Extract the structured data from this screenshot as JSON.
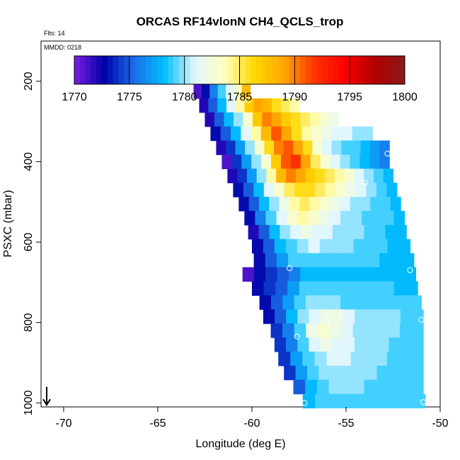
{
  "chart_data": {
    "type": "heatmap",
    "title": "ORCAS RF14vlonN CH4_QCLS_trop",
    "annotations": [
      "Flts: 14",
      "MMDD: 0218"
    ],
    "xlabel": "Longitude (deg E)",
    "ylabel": "PSXC (mbar)",
    "xlim": [
      -71.2,
      -50
    ],
    "ylim": [
      1010,
      100
    ],
    "x_ticks": [
      -70,
      -65,
      -60,
      -55,
      -50
    ],
    "x_tick_labels": [
      "-70",
      "-65",
      "-60",
      "-55",
      "-50"
    ],
    "y_ticks": [
      200,
      400,
      600,
      800,
      1000
    ],
    "y_tick_labels": [
      "200",
      "400",
      "600",
      "800",
      "1000"
    ],
    "colorbar": {
      "min": 1770,
      "max": 1800,
      "ticks": [
        1770,
        1775,
        1780,
        1785,
        1790,
        1795,
        1800
      ],
      "tick_labels": [
        "1770",
        "1775",
        "1780",
        "1785",
        "1790",
        "1795",
        "1800"
      ],
      "colors": [
        "#7b1fe0",
        "#0000a8",
        "#1a6fe8",
        "#00bfff",
        "#e0f6ff",
        "#ffffc0",
        "#ffd700",
        "#ffa500",
        "#ff3300",
        "#ff0000",
        "#b00000",
        "#8b1a1a"
      ]
    },
    "pressure_levels_mbar": [
      {
        "p": 225,
        "x_start": -63.1,
        "x_end": -60.1,
        "values": [
          1771,
          1773,
          1776,
          1779,
          1781,
          1783,
          1788
        ]
      },
      {
        "p": 260,
        "x_start": -62.8,
        "x_end": -57.5,
        "values": [
          1772,
          1775,
          1778,
          1781,
          1784,
          1787,
          1789,
          1788,
          1786,
          1785,
          1784
        ]
      },
      {
        "p": 295,
        "x_start": -62.5,
        "x_end": -55.4,
        "values": [
          1772,
          1775,
          1778,
          1780,
          1783,
          1787,
          1790,
          1789,
          1787,
          1786,
          1785,
          1784,
          1783,
          1782
        ]
      },
      {
        "p": 330,
        "x_start": -62.2,
        "x_end": -53.6,
        "values": [
          1773,
          1775,
          1778,
          1781,
          1784,
          1788,
          1791,
          1789,
          1786,
          1784,
          1783,
          1782,
          1781,
          1781,
          1780,
          1780
        ]
      },
      {
        "p": 365,
        "x_start": -61.9,
        "x_end": -52.7,
        "values": [
          1772,
          1774,
          1777,
          1780,
          1783,
          1786,
          1790,
          1791,
          1789,
          1786,
          1783,
          1781,
          1780,
          1779,
          1779,
          1778,
          1777,
          1776
        ]
      },
      {
        "p": 400,
        "x_start": -61.6,
        "x_end": -52.7,
        "values": [
          1771,
          1774,
          1777,
          1780,
          1783,
          1787,
          1791,
          1792,
          1789,
          1785,
          1783,
          1781,
          1780,
          1779,
          1778,
          1777,
          1776
        ]
      },
      {
        "p": 435,
        "x_start": -61.3,
        "x_end": -52.5,
        "values": [
          1772,
          1774,
          1777,
          1780,
          1784,
          1788,
          1790,
          1789,
          1787,
          1786,
          1785,
          1784,
          1783,
          1781,
          1780,
          1779,
          1778
        ]
      },
      {
        "p": 470,
        "x_start": -61.0,
        "x_end": -52.3,
        "values": [
          1773,
          1775,
          1778,
          1781,
          1783,
          1785,
          1786,
          1786,
          1785,
          1784,
          1783,
          1782,
          1781,
          1780,
          1779,
          1778
        ]
      },
      {
        "p": 505,
        "x_start": -60.7,
        "x_end": -52.1,
        "values": [
          1773,
          1775,
          1778,
          1780,
          1782,
          1784,
          1785,
          1784,
          1783,
          1782,
          1781,
          1780,
          1780,
          1779,
          1779,
          1778
        ]
      },
      {
        "p": 540,
        "x_start": -60.4,
        "x_end": -51.9,
        "values": [
          1773,
          1776,
          1779,
          1781,
          1783,
          1784,
          1783,
          1782,
          1781,
          1780,
          1780,
          1779,
          1779,
          1779,
          1778
        ]
      },
      {
        "p": 575,
        "x_start": -60.2,
        "x_end": -51.8,
        "values": [
          1772,
          1775,
          1778,
          1780,
          1781,
          1782,
          1781,
          1781,
          1780,
          1780,
          1780,
          1779,
          1779,
          1778,
          1778
        ]
      },
      {
        "p": 610,
        "x_start": -60.0,
        "x_end": -51.6,
        "values": [
          1773,
          1775,
          1778,
          1779,
          1780,
          1781,
          1780,
          1780,
          1780,
          1779,
          1779,
          1779,
          1778,
          1778
        ]
      },
      {
        "p": 645,
        "x_start": -59.9,
        "x_end": -51.4,
        "values": [
          1773,
          1775,
          1777,
          1779,
          1779,
          1779,
          1779,
          1779,
          1779,
          1779,
          1779,
          1778,
          1778,
          1778
        ]
      },
      {
        "p": 680,
        "x_start": -60.5,
        "x_end": -51.3,
        "values": [
          1771,
          1773,
          1774,
          1775,
          1776,
          1778,
          1778,
          1778,
          1778,
          1778,
          1778,
          1778,
          1778,
          1778,
          1778
        ]
      },
      {
        "p": 715,
        "x_start": -60.0,
        "x_end": -51.2,
        "values": [
          1773,
          1774,
          1775,
          1777,
          1779,
          1779,
          1779,
          1779,
          1779,
          1779,
          1779,
          1779,
          1778,
          1778
        ]
      },
      {
        "p": 750,
        "x_start": -59.6,
        "x_end": -51.0,
        "values": [
          1773,
          1775,
          1777,
          1779,
          1780,
          1780,
          1780,
          1779,
          1779,
          1779,
          1779,
          1779,
          1779,
          1779
        ]
      },
      {
        "p": 785,
        "x_start": -59.4,
        "x_end": -50.9,
        "values": [
          1773,
          1775,
          1778,
          1780,
          1781,
          1782,
          1782,
          1781,
          1780,
          1780,
          1780,
          1780,
          1779,
          1779
        ]
      },
      {
        "p": 820,
        "x_start": -59.0,
        "x_end": -50.9,
        "values": [
          1774,
          1776,
          1779,
          1782,
          1783,
          1782,
          1781,
          1780,
          1780,
          1780,
          1780,
          1779,
          1779
        ]
      },
      {
        "p": 855,
        "x_start": -58.8,
        "x_end": -50.9,
        "values": [
          1774,
          1776,
          1779,
          1781,
          1782,
          1781,
          1781,
          1780,
          1780,
          1780,
          1779,
          1779,
          1779
        ]
      },
      {
        "p": 890,
        "x_start": -58.6,
        "x_end": -50.9,
        "values": [
          1774,
          1777,
          1779,
          1780,
          1781,
          1781,
          1780,
          1780,
          1780,
          1779,
          1779,
          1779
        ]
      },
      {
        "p": 925,
        "x_start": -58.3,
        "x_end": -50.9,
        "values": [
          1774,
          1777,
          1779,
          1780,
          1780,
          1780,
          1780,
          1780,
          1779,
          1779,
          1779,
          1779
        ]
      },
      {
        "p": 960,
        "x_start": -57.8,
        "x_end": -50.9,
        "values": [
          1775,
          1778,
          1779,
          1780,
          1780,
          1780,
          1779,
          1779,
          1779,
          1779,
          1779
        ]
      },
      {
        "p": 995,
        "x_start": -57.3,
        "x_end": -50.8,
        "values": [
          1778,
          1779,
          1779,
          1779,
          1779,
          1779,
          1779,
          1779,
          1779,
          1779
        ]
      }
    ],
    "markers": [
      {
        "lon": -60.2,
        "p": 247
      },
      {
        "lon": -59.2,
        "p": 388
      },
      {
        "lon": -52.8,
        "p": 380
      },
      {
        "lon": -54.0,
        "p": 452
      },
      {
        "lon": -58.0,
        "p": 665
      },
      {
        "lon": -51.6,
        "p": 670
      },
      {
        "lon": -56.0,
        "p": 797
      },
      {
        "lon": -51.0,
        "p": 793
      },
      {
        "lon": -57.6,
        "p": 835
      },
      {
        "lon": -57.2,
        "p": 1000
      },
      {
        "lon": -50.9,
        "p": 998
      }
    ],
    "arrow": {
      "lon": -70.9,
      "from_p": 960,
      "to_p": 1005
    }
  }
}
